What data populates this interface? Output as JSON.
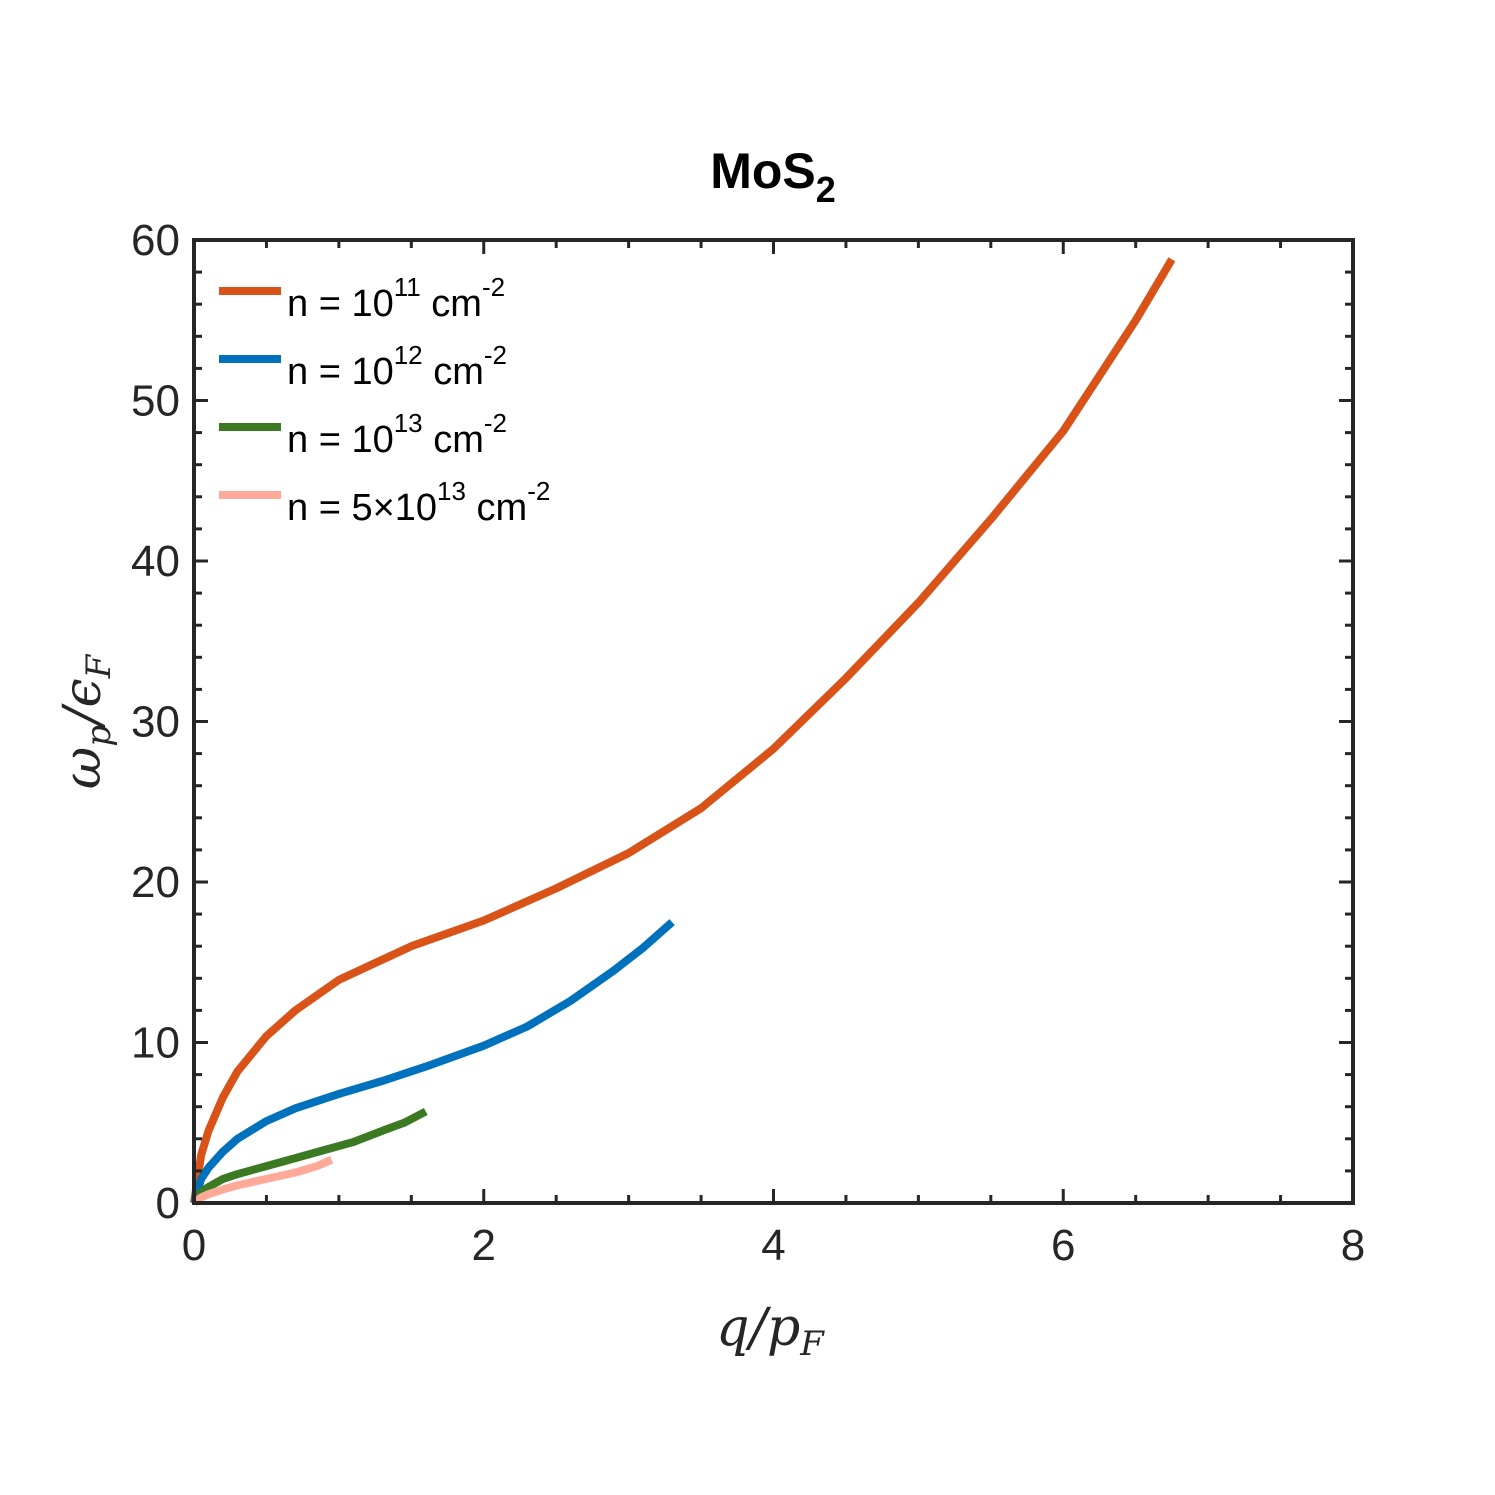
{
  "chart_data": {
    "type": "line",
    "title": "MoS",
    "title_subscript": "2",
    "xlabel": {
      "main": "q/p",
      "sub": "F"
    },
    "ylabel": {
      "main": "ω",
      "sub1": "p",
      "mid": "/ϵ",
      "sub2": "F"
    },
    "xlim": [
      0,
      8
    ],
    "ylim": [
      0,
      60
    ],
    "xticks": [
      "0",
      "2",
      "4",
      "6",
      "8"
    ],
    "yticks": [
      "0",
      "10",
      "20",
      "30",
      "40",
      "50",
      "60"
    ],
    "grid": false,
    "legend_placement": "top-left",
    "series": [
      {
        "name": "n = 10^11 cm^-2",
        "label": {
          "pre": "n = 10",
          "sup1": "11",
          "mid": " cm",
          "sup2": "-2"
        },
        "color": "#D95319",
        "x": [
          0,
          0.05,
          0.1,
          0.2,
          0.3,
          0.5,
          0.7,
          1.0,
          1.5,
          2.0,
          2.5,
          3.0,
          3.5,
          4.0,
          4.5,
          5.0,
          5.5,
          6.0,
          6.5,
          6.75
        ],
        "y": [
          0,
          3.0,
          4.5,
          6.6,
          8.2,
          10.4,
          12.0,
          13.9,
          16.0,
          17.6,
          19.6,
          21.8,
          24.6,
          28.3,
          32.7,
          37.4,
          42.6,
          48.1,
          55.0,
          58.8
        ]
      },
      {
        "name": "n = 10^12 cm^-2",
        "label": {
          "pre": "n = 10",
          "sup1": "12",
          "mid": " cm",
          "sup2": "-2"
        },
        "color": "#0072BD",
        "x": [
          0,
          0.05,
          0.1,
          0.2,
          0.3,
          0.5,
          0.7,
          1.0,
          1.3,
          1.6,
          2.0,
          2.3,
          2.6,
          2.9,
          3.1,
          3.3
        ],
        "y": [
          0,
          1.5,
          2.2,
          3.2,
          4.0,
          5.1,
          5.9,
          6.8,
          7.6,
          8.5,
          9.8,
          11.0,
          12.6,
          14.5,
          15.9,
          17.5
        ]
      },
      {
        "name": "n = 10^13 cm^-2",
        "label": {
          "pre": "n = 10",
          "sup1": "13",
          "mid": " cm",
          "sup2": "-2"
        },
        "color": "#3B7A22",
        "x": [
          0,
          0.05,
          0.1,
          0.2,
          0.3,
          0.5,
          0.7,
          0.9,
          1.1,
          1.3,
          1.45,
          1.6
        ],
        "y": [
          0,
          0.7,
          1.0,
          1.5,
          1.8,
          2.3,
          2.8,
          3.3,
          3.8,
          4.5,
          5.0,
          5.7
        ]
      },
      {
        "name": "n = 5×10^13 cm^-2",
        "label": {
          "pre": "n = 5×10",
          "sup1": "13",
          "mid": " cm",
          "sup2": "-2"
        },
        "color": "#FFA999",
        "x": [
          0,
          0.05,
          0.1,
          0.2,
          0.3,
          0.5,
          0.7,
          0.85,
          0.95
        ],
        "y": [
          0,
          0.35,
          0.55,
          0.85,
          1.1,
          1.5,
          1.9,
          2.3,
          2.7
        ]
      }
    ]
  }
}
